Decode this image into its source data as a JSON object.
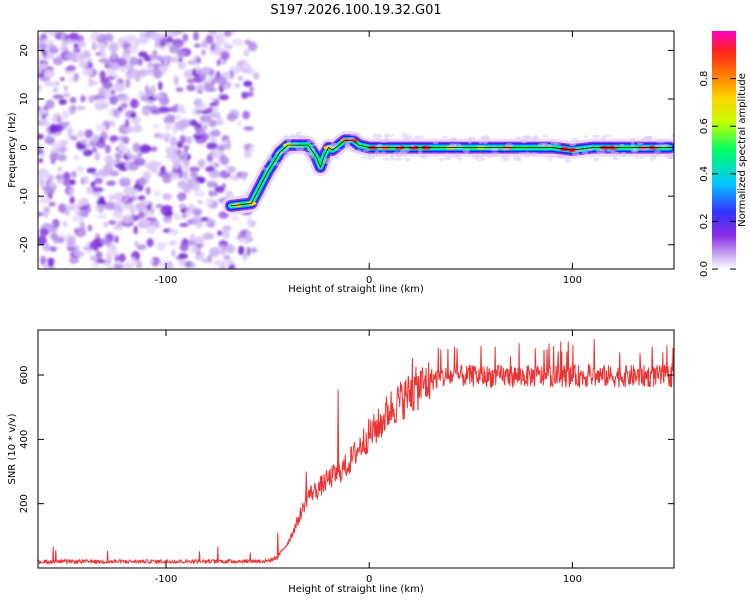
{
  "title": "S197.2026.100.19.32.G01",
  "chart_data": [
    {
      "type": "heatmap",
      "name": "spectrogram",
      "xlabel": "Height of straight line (km)",
      "ylabel": "Frequency (Hz)",
      "xlim": [
        -163,
        150
      ],
      "ylim": [
        -25,
        24
      ],
      "xticks": [
        -100,
        0,
        100
      ],
      "yticks": [
        20,
        10,
        0,
        -10,
        -20
      ],
      "xtick_labels": [
        "-100",
        "0",
        "100"
      ],
      "ytick_labels": [
        "20",
        "10",
        "0",
        "-10",
        "-20"
      ],
      "noise_region_x": [
        -163,
        -55
      ],
      "ridge": {
        "x": [
          -68,
          -58,
          -50,
          -44,
          -40,
          -36,
          -30,
          -26,
          -24,
          -22,
          -20,
          -18,
          -15,
          -12,
          -8,
          -5,
          0,
          10,
          30,
          50,
          70,
          90,
          100,
          110,
          130,
          148
        ],
        "freq": [
          -12,
          -11.5,
          -5,
          -1,
          0.5,
          0.5,
          0.5,
          -2,
          -4,
          -1.5,
          0,
          -0.5,
          0.5,
          1.5,
          1.5,
          0.5,
          0,
          0,
          0,
          0,
          0,
          0,
          -0.5,
          0,
          0,
          0
        ]
      },
      "colorbar": {
        "label": "Normalized spectral amplitude",
        "range": [
          0,
          1
        ],
        "ticks": [
          0.0,
          0.2,
          0.4,
          0.6,
          0.8
        ],
        "tick_labels": [
          "0.0",
          "0.2",
          "0.4",
          "0.6",
          "0.8"
        ],
        "colors": [
          "#ffffff",
          "#c8a8f0",
          "#8a2be2",
          "#3333ff",
          "#00c8ff",
          "#00ff66",
          "#c8ff00",
          "#ffd200",
          "#ff7800",
          "#ff2020",
          "#ff00c8"
        ]
      }
    },
    {
      "type": "line",
      "name": "snr",
      "xlabel": "Height of straight line (km)",
      "ylabel": "SNR (10 * v/v)",
      "xlim": [
        -163,
        150
      ],
      "ylim": [
        0,
        740
      ],
      "xticks": [
        -100,
        0,
        100
      ],
      "yticks": [
        200,
        400,
        600
      ],
      "xtick_labels": [
        "-100",
        "0",
        "100"
      ],
      "ytick_labels": [
        "200",
        "400",
        "600"
      ],
      "line_color": "#ee3333",
      "envelope": {
        "x": [
          -163,
          -50,
          -45,
          -40,
          -35,
          -30,
          -25,
          -20,
          -15,
          -10,
          -5,
          0,
          5,
          10,
          20,
          30,
          40,
          60,
          80,
          100,
          120,
          150
        ],
        "snr": [
          20,
          22,
          35,
          80,
          150,
          230,
          250,
          280,
          300,
          330,
          380,
          420,
          450,
          500,
          550,
          590,
          600,
          600,
          600,
          600,
          600,
          600
        ]
      },
      "spikes": [
        {
          "x": -15.3,
          "snr": 555
        },
        {
          "x": -45,
          "snr": 110
        },
        {
          "x": -31,
          "snr": 300
        }
      ]
    }
  ]
}
